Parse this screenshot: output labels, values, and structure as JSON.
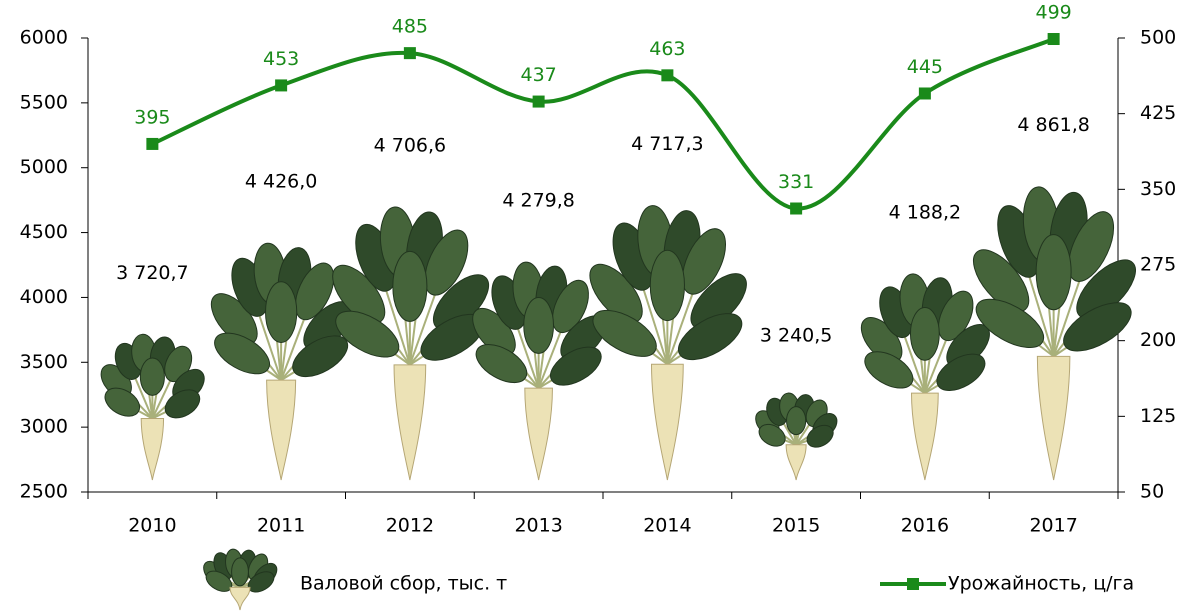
{
  "chart_data": {
    "type": "bar",
    "categories": [
      "2010",
      "2011",
      "2012",
      "2013",
      "2014",
      "2015",
      "2016",
      "2017"
    ],
    "series": [
      {
        "name": "Валовой сбор, тыс. т",
        "type": "bar",
        "color": "#3d5a34",
        "values": [
          3720.7,
          4426.0,
          4706.6,
          4279.8,
          4717.3,
          3240.5,
          4188.2,
          4861.8
        ],
        "value_labels": [
          "3 720,7",
          "4 426,0",
          "4 706,6",
          "4 279,8",
          "4 717,3",
          "3 240,5",
          "4 188,2",
          "4 861,8"
        ]
      },
      {
        "name": "Урожайность, ц/га",
        "type": "line",
        "axis": "y2",
        "color": "#1a8a1a",
        "values": [
          395,
          453,
          485,
          437,
          463,
          331,
          445,
          499
        ]
      }
    ],
    "ylim": [
      2500,
      6000
    ],
    "yticks": [
      2500,
      3000,
      3500,
      4000,
      4500,
      5000,
      5500,
      6000
    ],
    "y2lim": [
      50,
      500
    ],
    "y2ticks": [
      50,
      125,
      200,
      275,
      350,
      425,
      500
    ]
  }
}
